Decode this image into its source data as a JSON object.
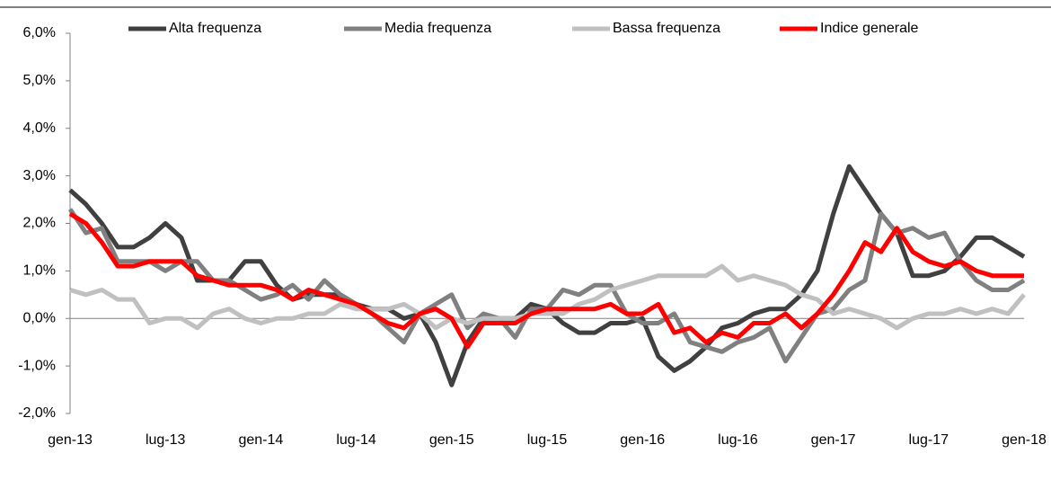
{
  "chart_data": {
    "type": "line",
    "categories": [
      "gen-13",
      null,
      null,
      null,
      null,
      null,
      "lug-13",
      null,
      null,
      null,
      null,
      null,
      "gen-14",
      null,
      null,
      null,
      null,
      null,
      "lug-14",
      null,
      null,
      null,
      null,
      null,
      "gen-15",
      null,
      null,
      null,
      null,
      null,
      "lug-15",
      null,
      null,
      null,
      null,
      null,
      "gen-16",
      null,
      null,
      null,
      null,
      null,
      "lug-16",
      null,
      null,
      null,
      null,
      null,
      "gen-17",
      null,
      null,
      null,
      null,
      null,
      "lug-17",
      null,
      null,
      null,
      null,
      null,
      "gen-18"
    ],
    "series": [
      {
        "name": "Alta frequenza",
        "color": "#404040",
        "values": [
          2.7,
          2.4,
          2.0,
          1.5,
          1.5,
          1.7,
          2.0,
          1.7,
          0.8,
          0.8,
          0.8,
          1.2,
          1.2,
          0.7,
          0.4,
          0.5,
          0.5,
          0.5,
          0.3,
          0.2,
          0.2,
          0.0,
          0.1,
          -0.5,
          -1.4,
          -0.5,
          0.0,
          0.0,
          0.0,
          0.3,
          0.2,
          -0.1,
          -0.3,
          -0.3,
          -0.1,
          -0.1,
          0.0,
          -0.8,
          -1.1,
          -0.9,
          -0.6,
          -0.2,
          -0.1,
          0.1,
          0.2,
          0.2,
          0.5,
          1.0,
          2.2,
          3.2,
          2.7,
          2.2,
          1.8,
          0.9,
          0.9,
          1.0,
          1.3,
          1.7,
          1.7,
          1.5,
          1.3
        ]
      },
      {
        "name": "Media frequenza",
        "color": "#808080",
        "values": [
          2.3,
          1.8,
          1.9,
          1.2,
          1.2,
          1.2,
          1.0,
          1.2,
          1.2,
          0.8,
          0.8,
          0.6,
          0.4,
          0.5,
          0.7,
          0.4,
          0.8,
          0.5,
          0.3,
          0.1,
          -0.2,
          -0.5,
          0.1,
          0.3,
          0.5,
          -0.2,
          0.1,
          0.0,
          -0.4,
          0.2,
          0.2,
          0.6,
          0.5,
          0.7,
          0.7,
          0.1,
          -0.1,
          -0.1,
          0.1,
          -0.5,
          -0.6,
          -0.7,
          -0.5,
          -0.4,
          -0.2,
          -0.9,
          -0.4,
          0.1,
          0.2,
          0.6,
          0.8,
          2.2,
          1.8,
          1.9,
          1.7,
          1.8,
          1.2,
          0.8,
          0.6,
          0.6,
          0.8
        ]
      },
      {
        "name": "Bassa frequenza",
        "color": "#c0c0c0",
        "values": [
          0.6,
          0.5,
          0.6,
          0.4,
          0.4,
          -0.1,
          0.0,
          0.0,
          -0.2,
          0.1,
          0.2,
          0.0,
          -0.1,
          0.0,
          0.0,
          0.1,
          0.1,
          0.3,
          0.2,
          0.2,
          0.2,
          0.3,
          0.1,
          -0.2,
          0.0,
          -0.1,
          0.0,
          0.0,
          0.0,
          0.1,
          0.1,
          0.1,
          0.3,
          0.4,
          0.6,
          0.7,
          0.8,
          0.9,
          0.9,
          0.9,
          0.9,
          1.1,
          0.8,
          0.9,
          0.8,
          0.7,
          0.5,
          0.4,
          0.1,
          0.2,
          0.1,
          0.0,
          -0.2,
          0.0,
          0.1,
          0.1,
          0.2,
          0.1,
          0.2,
          0.1,
          0.5
        ]
      },
      {
        "name": "Indice generale",
        "color": "#ff0000",
        "values": [
          2.2,
          2.0,
          1.6,
          1.1,
          1.1,
          1.2,
          1.2,
          1.2,
          0.9,
          0.8,
          0.7,
          0.7,
          0.7,
          0.6,
          0.4,
          0.6,
          0.5,
          0.4,
          0.3,
          0.1,
          -0.1,
          -0.2,
          0.1,
          0.2,
          0.0,
          -0.6,
          -0.1,
          -0.1,
          -0.1,
          0.1,
          0.2,
          0.2,
          0.2,
          0.2,
          0.3,
          0.1,
          0.1,
          0.3,
          -0.3,
          -0.2,
          -0.5,
          -0.3,
          -0.4,
          -0.1,
          -0.1,
          0.1,
          -0.2,
          0.1,
          0.5,
          1.0,
          1.6,
          1.4,
          1.9,
          1.4,
          1.2,
          1.1,
          1.2,
          1.0,
          0.9,
          0.9,
          0.9
        ]
      }
    ],
    "ylim": [
      -2,
      6
    ],
    "yticks": [
      {
        "value": -2,
        "label": "-2,0%"
      },
      {
        "value": -1,
        "label": "-1,0%"
      },
      {
        "value": 0,
        "label": "0,0%"
      },
      {
        "value": 1,
        "label": "1,0%"
      },
      {
        "value": 2,
        "label": "2,0%"
      },
      {
        "value": 3,
        "label": "3,0%"
      },
      {
        "value": 4,
        "label": "4,0%"
      },
      {
        "value": 5,
        "label": "5,0%"
      },
      {
        "value": 6,
        "label": "6,0%"
      }
    ],
    "legend": "top"
  }
}
